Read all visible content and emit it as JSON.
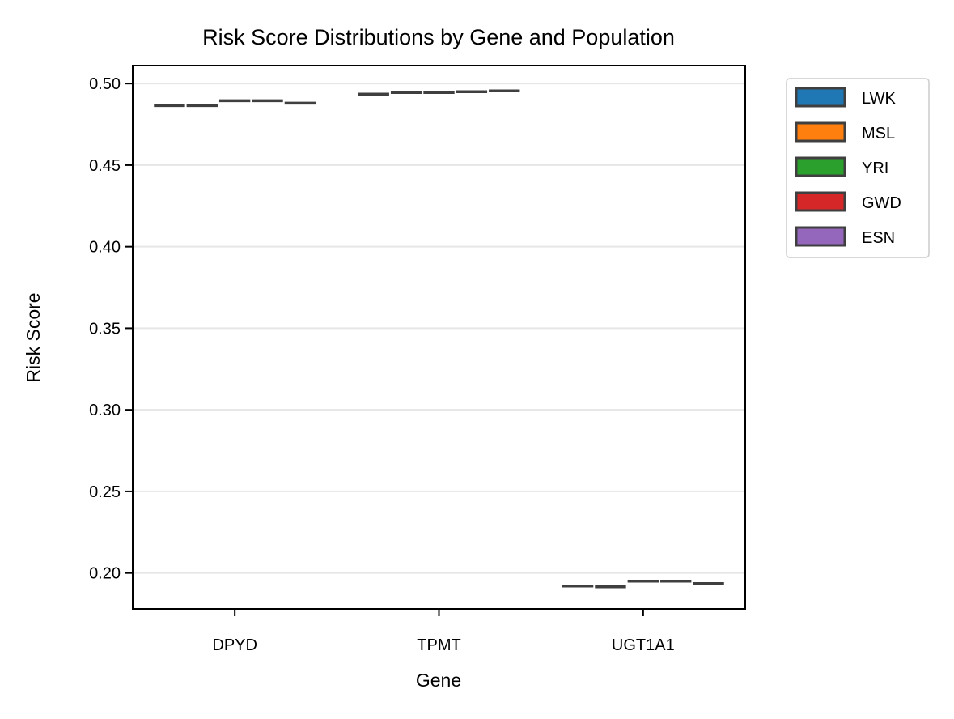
{
  "chart_data": {
    "type": "box",
    "title": "Risk Score Distributions by Gene and Population",
    "xlabel": "Gene",
    "ylabel": "Risk Score",
    "categories": [
      "DPYD",
      "TPMT",
      "UGT1A1"
    ],
    "ylim": [
      0.178,
      0.511
    ],
    "yticks": [
      0.2,
      0.25,
      0.3,
      0.35,
      0.4,
      0.45,
      0.5
    ],
    "ytick_labels": [
      "0.20",
      "0.25",
      "0.30",
      "0.35",
      "0.40",
      "0.45",
      "0.50"
    ],
    "grid": "horizontal",
    "legend_position": "outside-right",
    "series": [
      {
        "name": "LWK",
        "color": "#1f77b4",
        "values": [
          0.4865,
          0.4935,
          0.192
        ]
      },
      {
        "name": "MSL",
        "color": "#ff7f0e",
        "values": [
          0.4865,
          0.4945,
          0.1915
        ]
      },
      {
        "name": "YRI",
        "color": "#2ca02c",
        "values": [
          0.4895,
          0.4945,
          0.195
        ]
      },
      {
        "name": "GWD",
        "color": "#d62728",
        "values": [
          0.4895,
          0.495,
          0.195
        ]
      },
      {
        "name": "ESN",
        "color": "#9467bd",
        "values": [
          0.488,
          0.4955,
          0.1935
        ]
      }
    ]
  }
}
